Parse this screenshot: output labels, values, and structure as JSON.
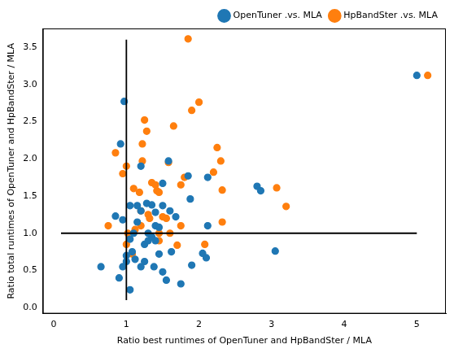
{
  "chart_data": {
    "type": "scatter",
    "x_label": "Ratio best runtimes of OpenTuner and HpBandSter / MLA",
    "y_label": "Ratio total runtimes of OpenTuner and HpBandSter / MLA",
    "xlim": [
      -0.15,
      5.4
    ],
    "ylim": [
      -0.08,
      3.75
    ],
    "xticks": [
      0,
      1,
      2,
      3,
      4,
      5
    ],
    "yticks": [
      {
        "value": 0,
        "label": "0.0"
      },
      0.5,
      {
        "value": 1,
        "label": "1.0"
      },
      1.5,
      {
        "value": 2,
        "label": "2.0"
      },
      2.5,
      {
        "value": 3,
        "label": "3.0"
      },
      3.5
    ],
    "grid": false,
    "legend": "upper right",
    "marker": "circle",
    "series": [
      {
        "name": "OpenTuner .vs. MLA",
        "color": "#1f77b4",
        "x": [
          0.65,
          0.85,
          0.9,
          0.92,
          0.95,
          0.97,
          0.95,
          1.0,
          1.0,
          1.05,
          1.05,
          1.05,
          1.08,
          1.1,
          1.12,
          1.15,
          1.15,
          1.2,
          1.2,
          1.25,
          1.25,
          1.28,
          1.3,
          1.3,
          1.35,
          1.35,
          1.38,
          1.4,
          1.4,
          1.4,
          1.45,
          1.5,
          1.5,
          1.5,
          1.55,
          1.58,
          1.6,
          1.62,
          1.68,
          1.75,
          1.85,
          1.88,
          1.9,
          2.05,
          2.1,
          2.12,
          2.12,
          2.8,
          2.85,
          3.05,
          5.0,
          1.45,
          1.2
        ],
        "values": [
          0.55,
          1.23,
          0.4,
          2.2,
          1.18,
          2.77,
          0.55,
          0.62,
          0.7,
          1.37,
          0.92,
          0.24,
          0.75,
          1.0,
          0.65,
          1.37,
          1.15,
          1.9,
          0.55,
          0.85,
          0.62,
          1.4,
          0.9,
          1.0,
          1.38,
          0.95,
          0.55,
          1.28,
          1.1,
          0.9,
          0.72,
          1.67,
          1.37,
          0.48,
          0.37,
          1.97,
          1.3,
          0.75,
          1.22,
          0.32,
          1.77,
          1.46,
          0.57,
          0.73,
          0.67,
          1.75,
          1.1,
          1.63,
          1.57,
          0.76,
          3.12,
          1.08,
          1.3
        ]
      },
      {
        "name": "HpBandSter .vs. MLA",
        "color": "#ff7f0e",
        "x": [
          0.75,
          0.85,
          0.95,
          1.0,
          1.0,
          1.02,
          1.08,
          1.12,
          1.18,
          1.2,
          1.2,
          1.22,
          1.22,
          1.25,
          1.28,
          1.3,
          1.32,
          1.35,
          1.4,
          1.42,
          1.45,
          1.45,
          1.45,
          1.5,
          1.55,
          1.58,
          1.6,
          1.65,
          1.7,
          1.75,
          1.75,
          1.8,
          1.85,
          1.9,
          2.0,
          2.08,
          2.25,
          2.3,
          2.32,
          2.32,
          3.07,
          3.2,
          5.15,
          2.2,
          1.1
        ],
        "values": [
          1.1,
          2.08,
          1.8,
          1.9,
          0.85,
          1.0,
          0.72,
          1.05,
          1.55,
          1.3,
          1.1,
          2.2,
          1.97,
          2.52,
          2.37,
          1.25,
          1.2,
          1.68,
          1.65,
          1.57,
          1.55,
          1.0,
          0.9,
          1.22,
          1.2,
          1.95,
          1.0,
          2.44,
          0.84,
          1.1,
          1.65,
          1.75,
          3.61,
          2.65,
          2.76,
          0.85,
          2.15,
          1.97,
          1.58,
          1.15,
          1.61,
          1.36,
          3.12,
          1.82,
          1.6
        ]
      }
    ],
    "lines": [
      {
        "x": [
          1,
          1
        ],
        "values": [
          0.1,
          3.6
        ],
        "color": "#000000"
      },
      {
        "x": [
          0.1,
          5.0
        ],
        "values": [
          1,
          1
        ],
        "color": "#000000"
      }
    ]
  }
}
